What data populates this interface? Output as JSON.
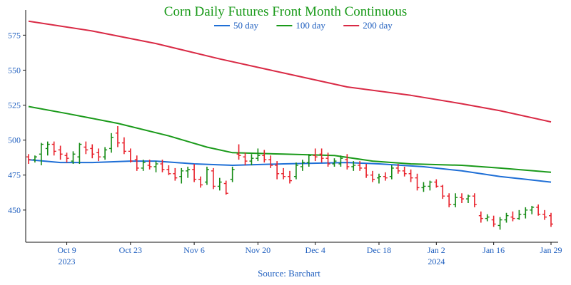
{
  "chart_data": {
    "type": "ohlc",
    "title": "Corn Daily Futures Front Month Continuous",
    "source": "Source: Barchart",
    "colors": {
      "title": "#1a9a1a",
      "axis_text": "#1f5fbf",
      "up": "#138a13",
      "down": "#e8202a",
      "ma50": "#1f6fd6",
      "ma100": "#1a9a1a",
      "ma200": "#d92a45"
    },
    "legend": [
      {
        "name": "50 day",
        "color": "#1f6fd6"
      },
      {
        "name": "100 day",
        "color": "#1a9a1a"
      },
      {
        "name": "200 day",
        "color": "#d92a45"
      }
    ],
    "y_ticks": [
      450,
      475,
      500,
      525,
      550,
      575
    ],
    "ylim": [
      427,
      593
    ],
    "x_ticks": [
      {
        "label": "Oct 9",
        "year": "2023",
        "index": 6
      },
      {
        "label": "Oct 23",
        "year": "",
        "index": 16
      },
      {
        "label": "Nov 6",
        "year": "",
        "index": 26
      },
      {
        "label": "Nov 20",
        "year": "",
        "index": 36
      },
      {
        "label": "Dec 4",
        "year": "",
        "index": 45
      },
      {
        "label": "Dec 18",
        "year": "",
        "index": 55
      },
      {
        "label": "Jan 2",
        "year": "2024",
        "index": 64
      },
      {
        "label": "Jan 16",
        "year": "",
        "index": 73
      },
      {
        "label": "Jan 29",
        "year": "",
        "index": 82
      }
    ],
    "bar_count": 83,
    "ohlc": [
      [
        488,
        490,
        483,
        486
      ],
      [
        486,
        489,
        484,
        488
      ],
      [
        490,
        498,
        482,
        497
      ],
      [
        494,
        499,
        489,
        497
      ],
      [
        497,
        499,
        489,
        492
      ],
      [
        493,
        496,
        486,
        490
      ],
      [
        489,
        491,
        484,
        487
      ],
      [
        485,
        492,
        483,
        490
      ],
      [
        488,
        498,
        483,
        497
      ],
      [
        495,
        499,
        490,
        493
      ],
      [
        494,
        497,
        487,
        490
      ],
      [
        491,
        494,
        485,
        488
      ],
      [
        488,
        495,
        486,
        493
      ],
      [
        494,
        505,
        491,
        502
      ],
      [
        505,
        510,
        495,
        498
      ],
      [
        498,
        502,
        490,
        492
      ],
      [
        492,
        494,
        484,
        485
      ],
      [
        486,
        489,
        478,
        480
      ],
      [
        480,
        486,
        478,
        484
      ],
      [
        482,
        486,
        479,
        481
      ],
      [
        481,
        485,
        477,
        483
      ],
      [
        483,
        486,
        477,
        479
      ],
      [
        479,
        482,
        475,
        476
      ],
      [
        476,
        480,
        471,
        473
      ],
      [
        474,
        480,
        469,
        478
      ],
      [
        478,
        481,
        473,
        479
      ],
      [
        479,
        483,
        470,
        472
      ],
      [
        472,
        474,
        466,
        468
      ],
      [
        470,
        481,
        468,
        479
      ],
      [
        478,
        480,
        465,
        467
      ],
      [
        467,
        473,
        464,
        470
      ],
      [
        469,
        471,
        461,
        462
      ],
      [
        472,
        481,
        470,
        479
      ],
      [
        490,
        497,
        486,
        489
      ],
      [
        488,
        491,
        482,
        485
      ],
      [
        485,
        490,
        482,
        487
      ],
      [
        487,
        494,
        485,
        489
      ],
      [
        489,
        493,
        484,
        486
      ],
      [
        486,
        489,
        480,
        482
      ],
      [
        482,
        485,
        472,
        476
      ],
      [
        476,
        480,
        472,
        474
      ],
      [
        474,
        478,
        469,
        471
      ],
      [
        474,
        484,
        472,
        482
      ],
      [
        481,
        486,
        478,
        484
      ],
      [
        484,
        490,
        481,
        489
      ],
      [
        489,
        494,
        485,
        488
      ],
      [
        490,
        494,
        484,
        487
      ],
      [
        487,
        491,
        481,
        483
      ],
      [
        483,
        487,
        481,
        485
      ],
      [
        483,
        489,
        481,
        487
      ],
      [
        486,
        490,
        479,
        481
      ],
      [
        481,
        485,
        478,
        482
      ],
      [
        482,
        485,
        478,
        480
      ],
      [
        480,
        483,
        473,
        475
      ],
      [
        475,
        478,
        470,
        472
      ],
      [
        473,
        476,
        469,
        474
      ],
      [
        474,
        477,
        471,
        473
      ],
      [
        474,
        482,
        472,
        480
      ],
      [
        480,
        483,
        476,
        478
      ],
      [
        478,
        481,
        474,
        476
      ],
      [
        476,
        479,
        470,
        473
      ],
      [
        473,
        476,
        464,
        466
      ],
      [
        466,
        470,
        463,
        467
      ],
      [
        467,
        471,
        464,
        470
      ],
      [
        470,
        472,
        466,
        467
      ],
      [
        467,
        468,
        458,
        460
      ],
      [
        460,
        462,
        452,
        454
      ],
      [
        454,
        462,
        452,
        459
      ],
      [
        459,
        462,
        455,
        458
      ],
      [
        458,
        461,
        455,
        460
      ],
      [
        460,
        462,
        452,
        454
      ],
      [
        446,
        449,
        441,
        444
      ],
      [
        444,
        447,
        442,
        445
      ],
      [
        443,
        446,
        438,
        440
      ],
      [
        439,
        445,
        436,
        443
      ],
      [
        443,
        448,
        441,
        446
      ],
      [
        445,
        449,
        442,
        444
      ],
      [
        444,
        450,
        443,
        447
      ],
      [
        447,
        452,
        444,
        450
      ],
      [
        450,
        453,
        447,
        452
      ],
      [
        452,
        454,
        446,
        447
      ],
      [
        447,
        450,
        443,
        445
      ],
      [
        446,
        448,
        438,
        440
      ]
    ],
    "ma50": [
      [
        0,
        486
      ],
      [
        5,
        484
      ],
      [
        10,
        484
      ],
      [
        16,
        485
      ],
      [
        20,
        485
      ],
      [
        26,
        483
      ],
      [
        32,
        482
      ],
      [
        40,
        483
      ],
      [
        50,
        484
      ],
      [
        55,
        483
      ],
      [
        62,
        481
      ],
      [
        68,
        478
      ],
      [
        74,
        474
      ],
      [
        78,
        472
      ],
      [
        82,
        470
      ]
    ],
    "ma100": [
      [
        0,
        524
      ],
      [
        6,
        519
      ],
      [
        14,
        512
      ],
      [
        22,
        503
      ],
      [
        28,
        495
      ],
      [
        32,
        491
      ],
      [
        40,
        490
      ],
      [
        48,
        489
      ],
      [
        54,
        485
      ],
      [
        60,
        483
      ],
      [
        68,
        482
      ],
      [
        74,
        480
      ],
      [
        82,
        477
      ]
    ],
    "ma200": [
      [
        0,
        585
      ],
      [
        10,
        578
      ],
      [
        20,
        569
      ],
      [
        30,
        558
      ],
      [
        40,
        548
      ],
      [
        50,
        538
      ],
      [
        60,
        532
      ],
      [
        68,
        526
      ],
      [
        74,
        521
      ],
      [
        82,
        513
      ]
    ]
  }
}
